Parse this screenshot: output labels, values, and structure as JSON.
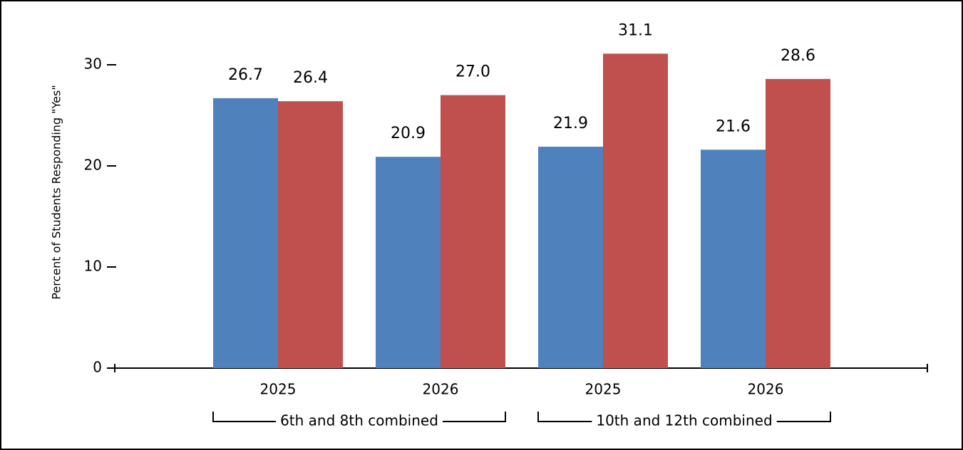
{
  "chart_data": {
    "type": "bar",
    "y_label": "Percent of Students Responding \"Yes\"",
    "categories": [
      "2025",
      "2026",
      "2025",
      "2026"
    ],
    "group_labels": [
      "6th and 8th combined",
      "10th and 12th combined"
    ],
    "series": [
      {
        "color": "#4f81bd",
        "values": [
          26.7,
          20.9,
          21.9,
          21.6
        ],
        "value_labels": [
          "26.7",
          "20.9",
          "21.9",
          "21.6"
        ]
      },
      {
        "color": "#c0504d",
        "values": [
          26.4,
          27.0,
          31.1,
          28.6
        ],
        "value_labels": [
          "26.4",
          "27.0",
          "31.1",
          "28.6"
        ]
      }
    ],
    "ylim": [
      0,
      30
    ],
    "yticks": [
      0,
      10,
      20,
      30
    ],
    "grid": false
  }
}
